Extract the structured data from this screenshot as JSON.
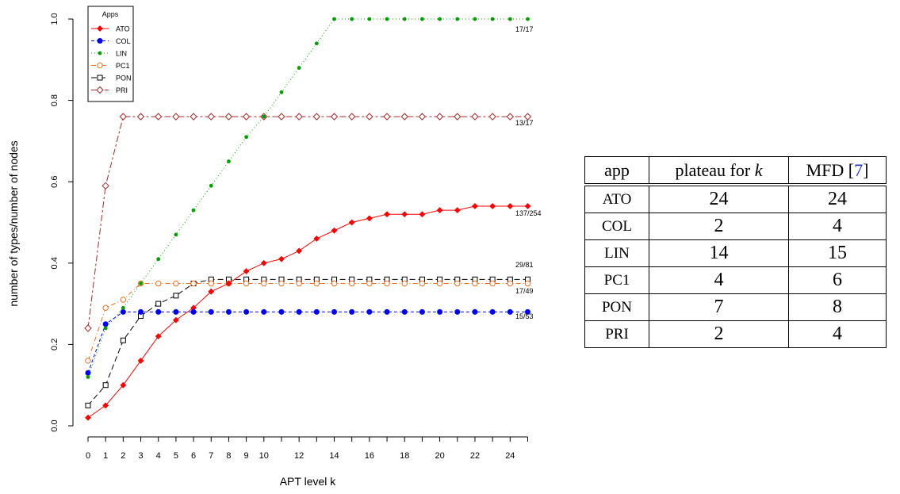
{
  "chart_data": {
    "type": "line",
    "xlabel": "APT level k",
    "ylabel": "number of types/number of nodes",
    "xlim": [
      0,
      25
    ],
    "ylim": [
      0,
      1
    ],
    "x_ticks": [
      "0",
      "1",
      "2",
      "3",
      "4",
      "5",
      "6",
      "7",
      "8",
      "9",
      "10",
      "12",
      "14",
      "16",
      "18",
      "20",
      "22",
      "24"
    ],
    "y_ticks": [
      "0.0",
      "0.2",
      "0.4",
      "0.6",
      "0.8",
      "1.0"
    ],
    "legend": {
      "title": "Apps",
      "position": "top-left"
    },
    "x": [
      0,
      1,
      2,
      3,
      4,
      5,
      6,
      7,
      8,
      9,
      10,
      11,
      12,
      13,
      14,
      15,
      16,
      17,
      18,
      19,
      20,
      21,
      22,
      23,
      24,
      25
    ],
    "series": [
      {
        "name": "ATO",
        "color": "#ff0000",
        "marker": "filled-diamond",
        "line": "solid",
        "values": [
          0.02,
          0.05,
          0.1,
          0.16,
          0.22,
          0.26,
          0.29,
          0.33,
          0.35,
          0.38,
          0.4,
          0.41,
          0.43,
          0.46,
          0.48,
          0.5,
          0.51,
          0.52,
          0.52,
          0.52,
          0.53,
          0.53,
          0.54,
          0.54,
          0.54,
          0.54
        ],
        "end_label": "137/254"
      },
      {
        "name": "COL",
        "color": "#0000ff",
        "marker": "filled-circle",
        "line": "dashed",
        "values": [
          0.13,
          0.25,
          0.28,
          0.28,
          0.28,
          0.28,
          0.28,
          0.28,
          0.28,
          0.28,
          0.28,
          0.28,
          0.28,
          0.28,
          0.28,
          0.28,
          0.28,
          0.28,
          0.28,
          0.28,
          0.28,
          0.28,
          0.28,
          0.28,
          0.28,
          0.28
        ],
        "end_label": "15/53"
      },
      {
        "name": "LIN",
        "color": "#00a000",
        "marker": "small-dot",
        "line": "dotted",
        "values": [
          0.12,
          0.24,
          0.29,
          0.35,
          0.41,
          0.47,
          0.53,
          0.59,
          0.65,
          0.71,
          0.76,
          0.82,
          0.88,
          0.94,
          1.0,
          1.0,
          1.0,
          1.0,
          1.0,
          1.0,
          1.0,
          1.0,
          1.0,
          1.0,
          1.0,
          1.0
        ],
        "end_label": "17/17"
      },
      {
        "name": "PC1",
        "color": "#f07020",
        "marker": "open-circle",
        "line": "dashdot",
        "values": [
          0.16,
          0.29,
          0.31,
          0.35,
          0.35,
          0.35,
          0.35,
          0.35,
          0.35,
          0.35,
          0.35,
          0.35,
          0.35,
          0.35,
          0.35,
          0.35,
          0.35,
          0.35,
          0.35,
          0.35,
          0.35,
          0.35,
          0.35,
          0.35,
          0.35,
          0.35
        ],
        "end_label": "17/49"
      },
      {
        "name": "PON",
        "color": "#000000",
        "marker": "open-square",
        "line": "longdash",
        "values": [
          0.05,
          0.1,
          0.21,
          0.27,
          0.3,
          0.32,
          0.35,
          0.36,
          0.36,
          0.36,
          0.36,
          0.36,
          0.36,
          0.36,
          0.36,
          0.36,
          0.36,
          0.36,
          0.36,
          0.36,
          0.36,
          0.36,
          0.36,
          0.36,
          0.36,
          0.36
        ],
        "end_label": "29/81"
      },
      {
        "name": "PRI",
        "color": "#a52a2a",
        "marker": "open-diamond",
        "line": "twodash",
        "values": [
          0.24,
          0.59,
          0.76,
          0.76,
          0.76,
          0.76,
          0.76,
          0.76,
          0.76,
          0.76,
          0.76,
          0.76,
          0.76,
          0.76,
          0.76,
          0.76,
          0.76,
          0.76,
          0.76,
          0.76,
          0.76,
          0.76,
          0.76,
          0.76,
          0.76,
          0.76
        ],
        "end_label": "13/17"
      }
    ]
  },
  "table": {
    "headers": {
      "app": "app",
      "plateau_prefix": "plateau for ",
      "plateau_var": "k",
      "mfd_prefix": "MFD [",
      "mfd_ref": "7",
      "mfd_suffix": "]"
    },
    "rows": [
      {
        "app": "ATO",
        "plateau": "24",
        "mfd": "24"
      },
      {
        "app": "COL",
        "plateau": "2",
        "mfd": "4"
      },
      {
        "app": "LIN",
        "plateau": "14",
        "mfd": "15"
      },
      {
        "app": "PC1",
        "plateau": "4",
        "mfd": "6"
      },
      {
        "app": "PON",
        "plateau": "7",
        "mfd": "8"
      },
      {
        "app": "PRI",
        "plateau": "2",
        "mfd": "4"
      }
    ]
  }
}
